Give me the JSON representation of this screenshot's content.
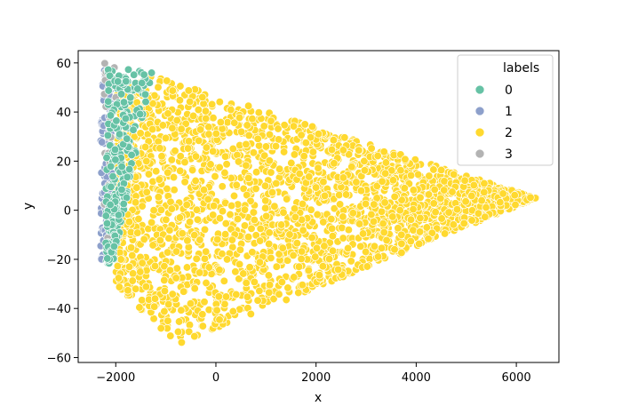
{
  "chart_data": {
    "type": "scatter",
    "title": "",
    "xlabel": "x",
    "ylabel": "y",
    "xlim": [
      -2750,
      6850
    ],
    "ylim": [
      -62,
      65
    ],
    "xticks": [
      -2000,
      0,
      2000,
      4000,
      6000
    ],
    "yticks": [
      -60,
      -40,
      -20,
      0,
      20,
      40,
      60
    ],
    "xtick_labels": [
      "−2000",
      "0",
      "2000",
      "4000",
      "6000"
    ],
    "ytick_labels": [
      "−60",
      "−40",
      "−20",
      "0",
      "20",
      "40",
      "60"
    ],
    "grid": false,
    "legend": {
      "title": "labels",
      "placement": "top-right",
      "entries": [
        "0",
        "1",
        "2",
        "3"
      ]
    },
    "colors": {
      "0": "#66c2a5",
      "1": "#8da0cb",
      "2": "#ffd92f",
      "3": "#b3b3b3"
    },
    "series": [
      {
        "name": "0",
        "x_range": [
          -2250,
          -1250
        ],
        "y_range": [
          -22,
          59
        ],
        "region": "narrow band along left edge, upper-left cluster"
      },
      {
        "name": "1",
        "x_range": [
          -2300,
          -2050
        ],
        "y_range": [
          -20,
          57
        ],
        "region": "thin vertical strip at far left"
      },
      {
        "name": "2",
        "x_range": [
          -2000,
          6400
        ],
        "y_range": [
          -55,
          56
        ],
        "region": "wedge tapering from left (y −55 to 56) to a point near x=6400, y=5"
      },
      {
        "name": "3",
        "x_range": [
          -2250,
          -1950
        ],
        "y_range": [
          -15,
          60
        ],
        "region": "sparse points mixed into left strip"
      }
    ]
  }
}
